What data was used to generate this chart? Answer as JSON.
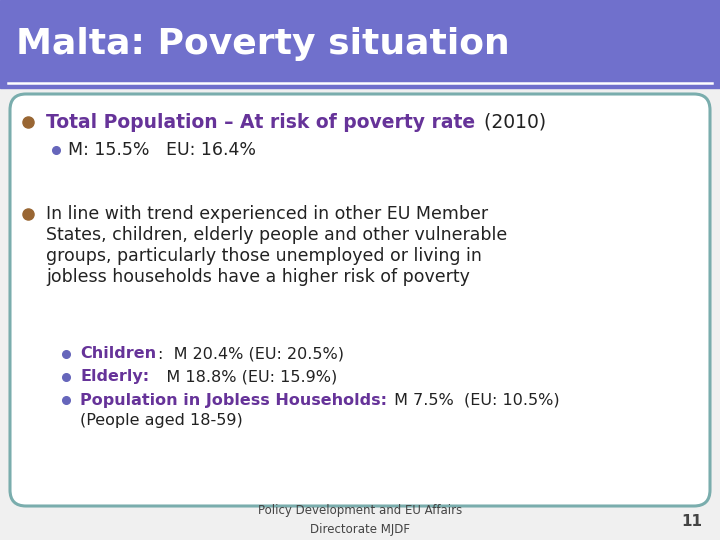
{
  "title": "Malta: Poverty situation",
  "title_bg_color": "#7070cc",
  "title_text_color": "#ffffff",
  "title_fontsize": 26,
  "body_bg_color": "#f0f0f0",
  "card_border_color": "#7aadad",
  "card_bg_color": "#ffffff",
  "bullet1_label": "Total Population – At risk of poverty rate",
  "bullet1_year": " (2010)",
  "bullet1_color": "#663399",
  "bullet1_sub": "M: 15.5%   EU: 16.4%",
  "bullet2_text_lines": [
    "In line with trend experienced in other EU Member",
    "States, children, elderly people and other vulnerable",
    "groups, particularly those unemployed or living in",
    "jobless households have a higher risk of poverty"
  ],
  "bullet2_color": "#222222",
  "bullet_color_brown": "#996633",
  "sub_bullet_color": "#6666bb",
  "sub_bullets": [
    {
      "bold": "Children",
      "rest": ":  M 20.4% (EU: 20.5%)"
    },
    {
      "bold": "Elderly:",
      "rest": "   M 18.8% (EU: 15.9%)"
    },
    {
      "bold": "Population in Jobless Households:",
      "rest": " M 7.5%  (EU: 10.5%)"
    }
  ],
  "sub_bullet_extra": "(People aged 18-59)",
  "sub_bullet_bold_color": "#663399",
  "footer_text1": "Policy Development and EU Affairs",
  "footer_text2": "Directorate MJDF",
  "footer_page": "11",
  "footer_color": "#444444",
  "footer_fontsize": 8.5,
  "body_fontsize": 12.5,
  "sub_fontsize": 11.5,
  "bullet1_fontsize": 13.5
}
